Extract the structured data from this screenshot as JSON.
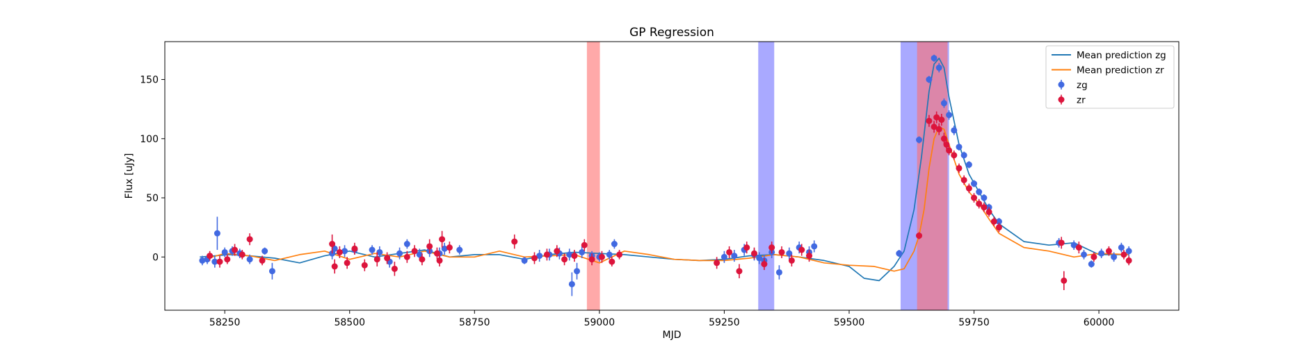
{
  "chart_data": {
    "type": "scatter",
    "title": "GP Regression",
    "xlabel": "MJD",
    "ylabel": "Flux [uJy]",
    "xlim": [
      58130,
      60160
    ],
    "ylim": [
      -45,
      182
    ],
    "xticks": [
      58250,
      58500,
      58750,
      59000,
      59250,
      59500,
      59750,
      60000
    ],
    "yticks": [
      0,
      50,
      100,
      150
    ],
    "grid": false,
    "legend_position": "top-right",
    "shaded_regions": [
      {
        "x0": 58975,
        "x1": 59001,
        "color": "#ff6f6f",
        "opacity": 0.6
      },
      {
        "x0": 59318,
        "x1": 59350,
        "color": "#6f6fff",
        "opacity": 0.6
      },
      {
        "x0": 59603,
        "x1": 59700,
        "color": "#6f6fff",
        "opacity": 0.6
      },
      {
        "x0": 59636,
        "x1": 59697,
        "color": "#ff6f6f",
        "opacity": 0.6
      }
    ],
    "series": [
      {
        "name": "Mean prediction zg",
        "kind": "line",
        "color": "#1f77b4",
        "x": [
          58200,
          58260,
          58300,
          58350,
          58400,
          58450,
          58500,
          58550,
          58600,
          58650,
          58700,
          58750,
          58800,
          58850,
          58900,
          58950,
          59000,
          59050,
          59100,
          59150,
          59200,
          59250,
          59300,
          59350,
          59400,
          59450,
          59500,
          59530,
          59560,
          59590,
          59610,
          59630,
          59645,
          59660,
          59670,
          59680,
          59690,
          59700,
          59720,
          59740,
          59760,
          59780,
          59800,
          59850,
          59900,
          59950,
          60000,
          60060
        ],
        "y": [
          0,
          2,
          1,
          -1,
          -5,
          1,
          5,
          0,
          3,
          6,
          0,
          2,
          2,
          -2,
          2,
          4,
          3,
          2,
          0,
          -2,
          -3,
          -2,
          1,
          2,
          0,
          -3,
          -8,
          -18,
          -20,
          -8,
          5,
          40,
          85,
          140,
          163,
          168,
          160,
          135,
          95,
          70,
          55,
          40,
          28,
          13,
          10,
          12,
          2,
          2
        ]
      },
      {
        "name": "Mean prediction zr",
        "kind": "line",
        "color": "#ff7f0e",
        "x": [
          58200,
          58250,
          58300,
          58350,
          58400,
          58450,
          58500,
          58550,
          58600,
          58650,
          58700,
          58750,
          58800,
          58850,
          58900,
          58950,
          59000,
          59050,
          59100,
          59150,
          59200,
          59250,
          59300,
          59350,
          59400,
          59450,
          59500,
          59550,
          59590,
          59610,
          59630,
          59640,
          59650,
          59660,
          59670,
          59680,
          59690,
          59700,
          59720,
          59740,
          59760,
          59780,
          59800,
          59850,
          59900,
          59950,
          60000,
          60060
        ],
        "y": [
          -3,
          3,
          1,
          -3,
          2,
          5,
          -2,
          3,
          0,
          5,
          0,
          0,
          5,
          0,
          1,
          2,
          -5,
          5,
          2,
          -2,
          -3,
          -3,
          -1,
          2,
          0,
          -5,
          -7,
          -8,
          -12,
          -10,
          5,
          18,
          40,
          75,
          100,
          110,
          108,
          95,
          70,
          55,
          45,
          32,
          20,
          8,
          5,
          0,
          3,
          2
        ]
      },
      {
        "name": "zg",
        "kind": "errorbar",
        "color": "#4169e1",
        "x": [
          58205,
          58215,
          58230,
          58235,
          58250,
          58265,
          58280,
          58300,
          58330,
          58345,
          58465,
          58470,
          58490,
          58510,
          58545,
          58560,
          58580,
          58600,
          58615,
          58640,
          58660,
          58680,
          58690,
          58720,
          58850,
          58880,
          58900,
          58920,
          58940,
          58945,
          58955,
          58965,
          58985,
          59000,
          59020,
          59030,
          59250,
          59270,
          59290,
          59310,
          59320,
          59330,
          59345,
          59360,
          59380,
          59400,
          59420,
          59430,
          59600,
          59640,
          59660,
          59670,
          59680,
          59690,
          59700,
          59710,
          59720,
          59730,
          59740,
          59750,
          59760,
          59770,
          59780,
          59800,
          59920,
          59950,
          59970,
          59985,
          60005,
          60030,
          60045,
          60060
        ],
        "y": [
          -3,
          -2,
          -4,
          20,
          4,
          5,
          3,
          -2,
          5,
          -12,
          3,
          7,
          5,
          6,
          6,
          4,
          -4,
          3,
          11,
          2,
          5,
          3,
          7,
          6,
          -3,
          1,
          2,
          3,
          2,
          -23,
          -12,
          4,
          1,
          0,
          2,
          11,
          0,
          1,
          6,
          2,
          -1,
          -3,
          4,
          -13,
          3,
          8,
          4,
          9,
          3,
          99,
          150,
          168,
          160,
          130,
          120,
          107,
          93,
          86,
          78,
          62,
          55,
          50,
          42,
          30,
          12,
          10,
          2,
          -6,
          3,
          0,
          8,
          5
        ],
        "err": [
          4,
          4,
          5,
          14,
          4,
          4,
          4,
          4,
          3,
          7,
          5,
          5,
          5,
          4,
          4,
          5,
          5,
          5,
          4,
          5,
          5,
          5,
          5,
          4,
          3,
          5,
          5,
          5,
          5,
          10,
          7,
          5,
          4,
          4,
          4,
          4,
          5,
          5,
          5,
          5,
          5,
          5,
          5,
          6,
          5,
          5,
          5,
          5,
          3,
          3,
          3,
          3,
          4,
          4,
          4,
          4,
          3,
          3,
          3,
          3,
          3,
          3,
          3,
          3,
          4,
          4,
          4,
          3,
          4,
          4,
          4,
          4
        ]
      },
      {
        "name": "zr",
        "kind": "errorbar",
        "color": "#dc143c",
        "x": [
          58220,
          58240,
          58255,
          58270,
          58285,
          58300,
          58325,
          58465,
          58470,
          58480,
          58495,
          58510,
          58530,
          58555,
          58575,
          58590,
          58615,
          58630,
          58645,
          58660,
          58675,
          58680,
          58685,
          58700,
          58830,
          58870,
          58895,
          58915,
          58930,
          58950,
          58970,
          58985,
          59005,
          59025,
          59040,
          59235,
          59260,
          59280,
          59295,
          59310,
          59330,
          59345,
          59365,
          59385,
          59405,
          59420,
          59640,
          59660,
          59670,
          59675,
          59680,
          59685,
          59690,
          59695,
          59700,
          59710,
          59720,
          59730,
          59740,
          59750,
          59760,
          59770,
          59780,
          59790,
          59800,
          59925,
          59930,
          59960,
          59990,
          60020,
          60050,
          60060
        ],
        "y": [
          1,
          -4,
          -2,
          6,
          2,
          15,
          -3,
          11,
          -8,
          4,
          -5,
          7,
          -7,
          -2,
          -1,
          -10,
          0,
          5,
          -2,
          9,
          3,
          -3,
          15,
          8,
          13,
          -1,
          2,
          5,
          -2,
          1,
          10,
          -2,
          0,
          -4,
          2,
          -5,
          4,
          -12,
          8,
          3,
          -6,
          8,
          4,
          -3,
          6,
          1,
          18,
          115,
          110,
          118,
          108,
          116,
          100,
          95,
          90,
          86,
          75,
          65,
          58,
          50,
          45,
          42,
          38,
          30,
          25,
          12,
          -20,
          8,
          0,
          5,
          2,
          -3
        ],
        "err": [
          4,
          5,
          4,
          5,
          4,
          5,
          4,
          8,
          6,
          5,
          5,
          5,
          5,
          6,
          5,
          6,
          5,
          5,
          5,
          6,
          5,
          5,
          7,
          5,
          6,
          5,
          5,
          5,
          5,
          5,
          5,
          5,
          5,
          4,
          4,
          5,
          5,
          6,
          5,
          5,
          5,
          5,
          5,
          5,
          5,
          5,
          3,
          5,
          5,
          5,
          5,
          5,
          5,
          4,
          4,
          4,
          4,
          4,
          4,
          4,
          4,
          4,
          4,
          4,
          4,
          5,
          8,
          5,
          4,
          4,
          4,
          4
        ]
      }
    ]
  }
}
